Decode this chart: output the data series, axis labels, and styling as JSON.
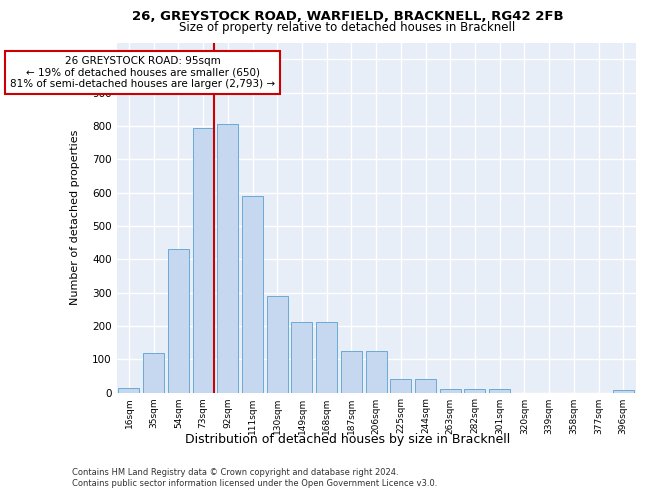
{
  "title1": "26, GREYSTOCK ROAD, WARFIELD, BRACKNELL, RG42 2FB",
  "title2": "Size of property relative to detached houses in Bracknell",
  "xlabel": "Distribution of detached houses by size in Bracknell",
  "ylabel": "Number of detached properties",
  "categories": [
    "16sqm",
    "35sqm",
    "54sqm",
    "73sqm",
    "92sqm",
    "111sqm",
    "130sqm",
    "149sqm",
    "168sqm",
    "187sqm",
    "206sqm",
    "225sqm",
    "244sqm",
    "263sqm",
    "282sqm",
    "301sqm",
    "320sqm",
    "339sqm",
    "358sqm",
    "377sqm",
    "396sqm"
  ],
  "values": [
    15,
    120,
    430,
    795,
    805,
    590,
    290,
    212,
    212,
    125,
    125,
    40,
    40,
    12,
    12,
    12,
    0,
    0,
    0,
    0,
    8
  ],
  "bar_color": "#c5d8ef",
  "bar_edge_color": "#6aaad4",
  "vline_index": 3,
  "vline_color": "#cc0000",
  "annotation_line1": "26 GREYSTOCK ROAD: 95sqm",
  "annotation_line2": "← 19% of detached houses are smaller (650)",
  "annotation_line3": "81% of semi-detached houses are larger (2,793) →",
  "annotation_box_edge": "#cc0000",
  "footer1": "Contains HM Land Registry data © Crown copyright and database right 2024.",
  "footer2": "Contains public sector information licensed under the Open Government Licence v3.0.",
  "ylim": [
    0,
    1050
  ],
  "yticks": [
    0,
    100,
    200,
    300,
    400,
    500,
    600,
    700,
    800,
    900,
    1000
  ],
  "background_color": "#e8eef8"
}
